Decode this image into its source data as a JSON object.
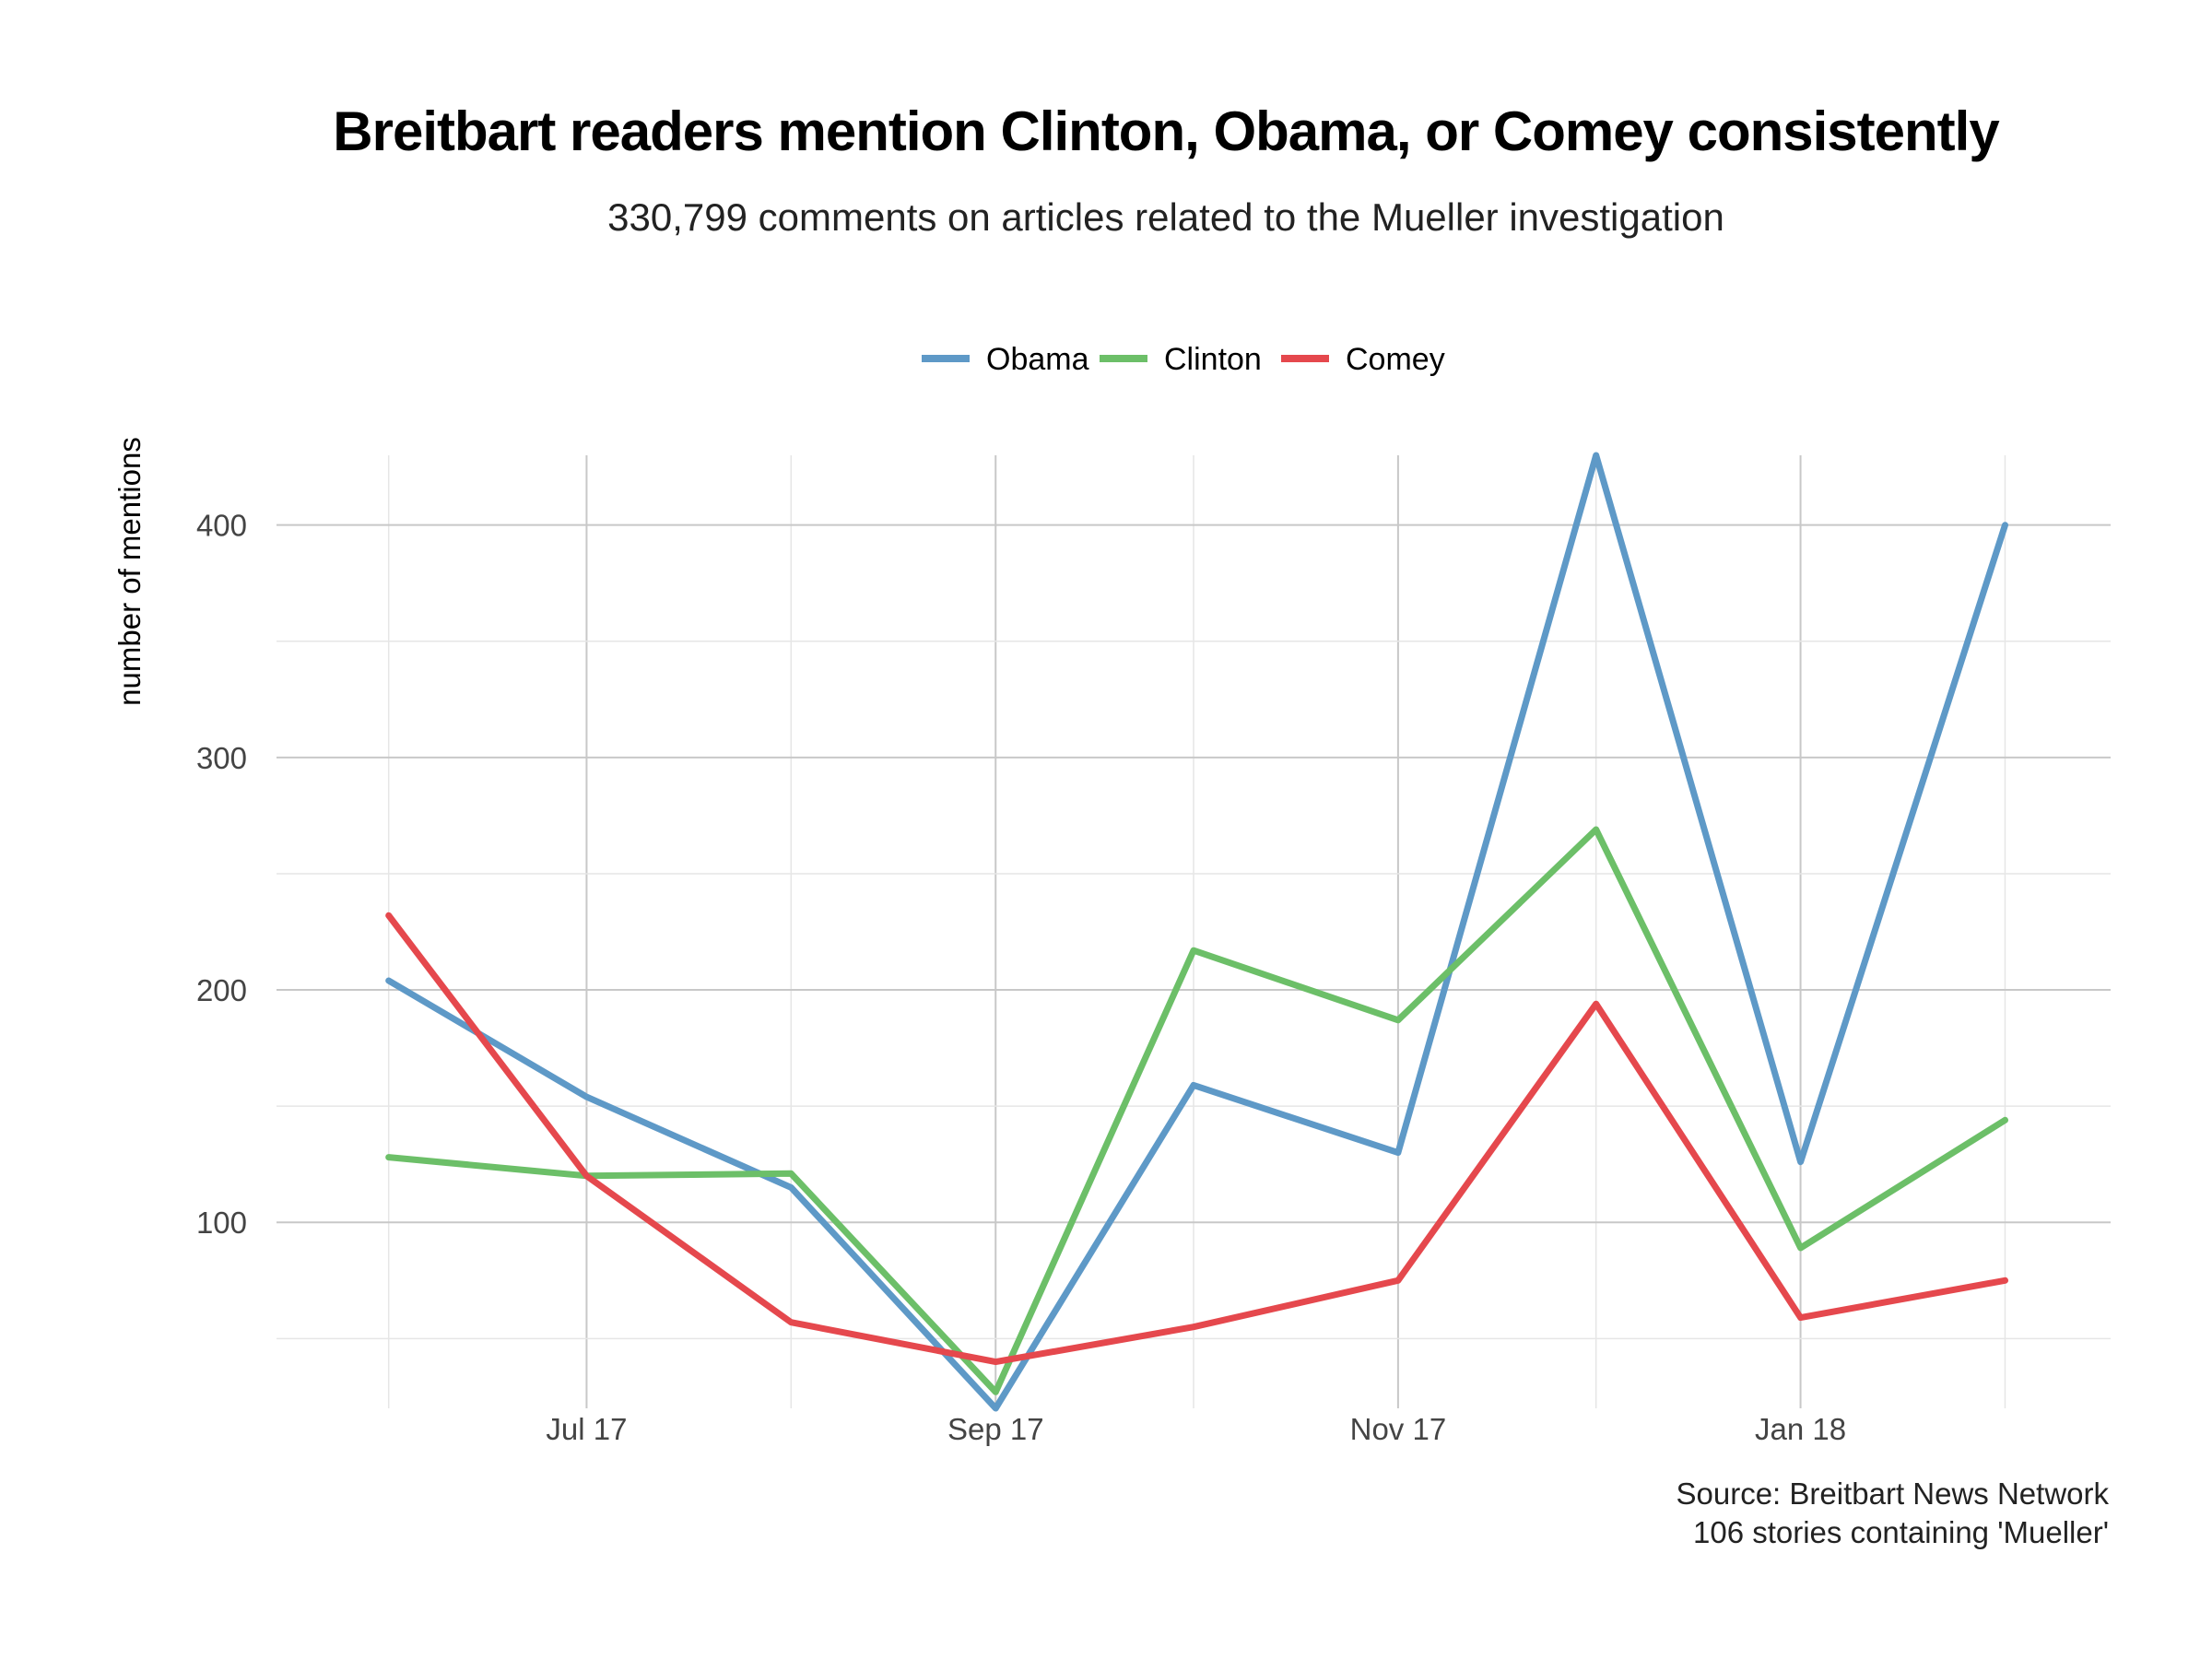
{
  "chart_data": {
    "type": "line",
    "title": "Breitbart readers mention Clinton, Obama, or Comey consistently",
    "subtitle": "330,799 comments on articles related to the Mueller investigation",
    "xlabel": "",
    "ylabel": "number of mentions",
    "x": [
      "2017-06-01",
      "2017-07-01",
      "2017-08-01",
      "2017-09-01",
      "2017-10-01",
      "2017-11-01",
      "2017-12-01",
      "2018-01-01",
      "2018-02-01"
    ],
    "x_ticks": [
      "Jul 17",
      "Sep 17",
      "Nov 17",
      "Jan 18"
    ],
    "xlim": [
      "2017-05-15",
      "2018-02-17"
    ],
    "y_ticks": [
      "100",
      "200",
      "300",
      "400"
    ],
    "ylim": [
      20,
      430
    ],
    "grid": true,
    "legend_position": "top",
    "series": [
      {
        "name": "Obama",
        "color": "#5e99c7",
        "values": [
          204,
          154,
          115,
          20,
          159,
          130,
          430,
          126,
          400
        ]
      },
      {
        "name": "Clinton",
        "color": "#6cbf68",
        "values": [
          128,
          120,
          121,
          27,
          217,
          187,
          269,
          89,
          144
        ]
      },
      {
        "name": "Comey",
        "color": "#e5484d",
        "values": [
          232,
          120,
          57,
          40,
          55,
          75,
          194,
          59,
          75
        ]
      }
    ],
    "caption": [
      "Source: Breitbart News Network",
      "106 stories containing 'Mueller'"
    ]
  }
}
